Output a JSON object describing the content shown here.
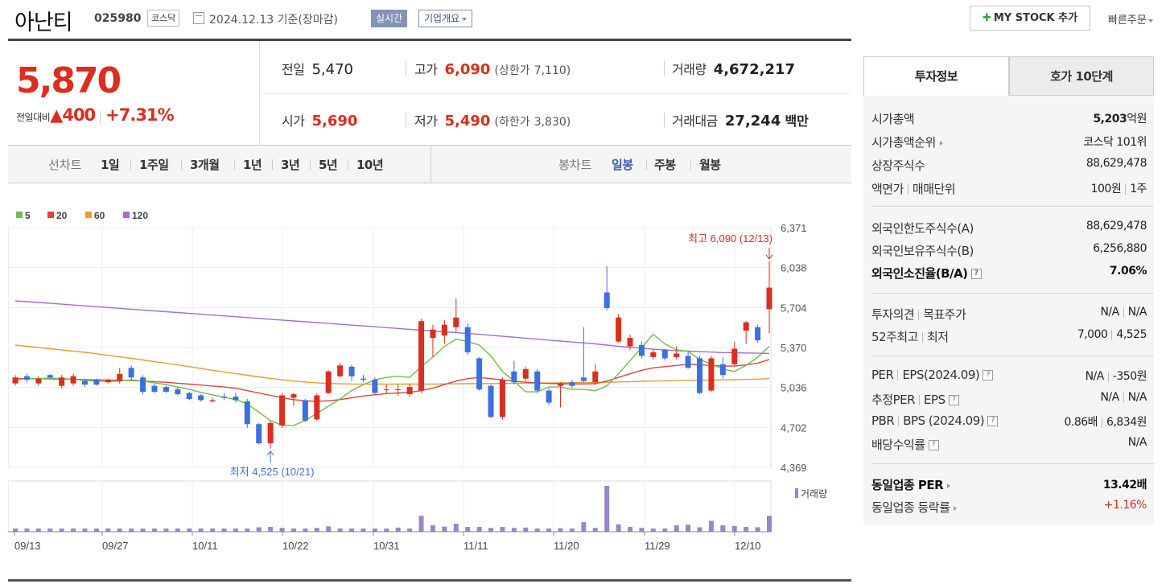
{
  "header": {
    "name": "아난티",
    "code": "025980",
    "market": "코스닥",
    "date": "2024.12.13  기준(장마감)",
    "live": "실시간",
    "overview": "기업개요",
    "mystock": "MY STOCK 추가",
    "quick_order": "빠른주문"
  },
  "price": {
    "current": "5,870",
    "change_label": "전일대비",
    "change": "400",
    "change_pct": "+7.31%"
  },
  "summary": {
    "prev_label": "전일",
    "prev": "5,470",
    "high_label": "고가",
    "high": "6,090",
    "upper_label": "(상한가",
    "upper": "7,110",
    "upper_end": ")",
    "volume_label": "거래량",
    "volume": "4,672,217",
    "open_label": "시가",
    "open": "5,690",
    "low_label": "저가",
    "low": "5,490",
    "lower_label": "(하한가",
    "lower": "3,830",
    "lower_end": ")",
    "value_label": "거래대금",
    "value": "27,244",
    "value_unit": "백만"
  },
  "period": {
    "line_label": "선차트",
    "line_items": [
      "1일",
      "1주일",
      "3개월",
      "1년",
      "3년",
      "5년",
      "10년"
    ],
    "candle_label": "봉차트",
    "candle_items": [
      "일봉",
      "주봉",
      "월봉"
    ],
    "selected": "일봉"
  },
  "colors": {
    "up": "#dc2d1e",
    "down": "#3c6fe0",
    "ma5": "#6cc04a",
    "ma20": "#e0443a",
    "ma60": "#ee9a32",
    "ma120": "#a56bdb",
    "volume": "#9a85c9"
  },
  "chart_data": {
    "type": "candlestick",
    "legend": [
      "5",
      "20",
      "60",
      "120"
    ],
    "y_ticks": [
      "6,371",
      "6,038",
      "5,704",
      "5,370",
      "5,036",
      "4,702",
      "4,369"
    ],
    "ylim": [
      4369,
      6371
    ],
    "x_ticks": [
      "09/13",
      "09/27",
      "10/11",
      "10/22",
      "10/31",
      "11/11",
      "11/20",
      "11/29",
      "12/10"
    ],
    "max_label": "최고 6,090 (12/13)",
    "min_label": "최저 4,525 (10/21)",
    "volume_label": "거래량",
    "candles": [
      {
        "o": 5070,
        "c": 5120,
        "h": 5140,
        "l": 5050
      },
      {
        "o": 5130,
        "c": 5100,
        "h": 5150,
        "l": 5080
      },
      {
        "o": 5070,
        "c": 5110,
        "h": 5130,
        "l": 5050
      },
      {
        "o": 5140,
        "c": 5120,
        "h": 5150,
        "l": 5110
      },
      {
        "o": 5050,
        "c": 5120,
        "h": 5140,
        "l": 5030
      },
      {
        "o": 5070,
        "c": 5130,
        "h": 5150,
        "l": 5050
      },
      {
        "o": 5090,
        "c": 5060,
        "h": 5110,
        "l": 5040
      },
      {
        "o": 5100,
        "c": 5060,
        "h": 5110,
        "l": 5050
      },
      {
        "o": 5080,
        "c": 5100,
        "h": 5110,
        "l": 5070
      },
      {
        "o": 5090,
        "c": 5150,
        "h": 5200,
        "l": 5070
      },
      {
        "o": 5200,
        "c": 5120,
        "h": 5220,
        "l": 5100
      },
      {
        "o": 5120,
        "c": 5000,
        "h": 5140,
        "l": 4980
      },
      {
        "o": 5050,
        "c": 5000,
        "h": 5070,
        "l": 4990
      },
      {
        "o": 5040,
        "c": 5000,
        "h": 5050,
        "l": 4990
      },
      {
        "o": 5020,
        "c": 4980,
        "h": 5040,
        "l": 4970
      },
      {
        "o": 4990,
        "c": 4940,
        "h": 5000,
        "l": 4930
      },
      {
        "o": 4970,
        "c": 4930,
        "h": 4980,
        "l": 4920
      },
      {
        "o": 4920,
        "c": 4930,
        "h": 4950,
        "l": 4910
      },
      {
        "o": 4960,
        "c": 4950,
        "h": 4990,
        "l": 4930
      },
      {
        "o": 4960,
        "c": 4930,
        "h": 4990,
        "l": 4910
      },
      {
        "o": 4920,
        "c": 4730,
        "h": 4940,
        "l": 4700
      },
      {
        "o": 4730,
        "c": 4570,
        "h": 4740,
        "l": 4560
      },
      {
        "o": 4570,
        "c": 4740,
        "h": 4760,
        "l": 4525
      },
      {
        "o": 4720,
        "c": 4970,
        "h": 4990,
        "l": 4700
      },
      {
        "o": 4950,
        "c": 4980,
        "h": 4990,
        "l": 4880
      },
      {
        "o": 4930,
        "c": 4760,
        "h": 4940,
        "l": 4750
      },
      {
        "o": 4770,
        "c": 4970,
        "h": 4990,
        "l": 4760
      },
      {
        "o": 4990,
        "c": 5170,
        "h": 5180,
        "l": 4980
      },
      {
        "o": 5130,
        "c": 5220,
        "h": 5240,
        "l": 5120
      },
      {
        "o": 5210,
        "c": 5130,
        "h": 5230,
        "l": 5090
      },
      {
        "o": 5110,
        "c": 5100,
        "h": 5140,
        "l": 5080
      },
      {
        "o": 5100,
        "c": 4990,
        "h": 5120,
        "l": 4980
      },
      {
        "o": 5020,
        "c": 5020,
        "h": 5060,
        "l": 4980
      },
      {
        "o": 5020,
        "c": 5020,
        "h": 5060,
        "l": 4970
      },
      {
        "o": 4980,
        "c": 5040,
        "h": 5070,
        "l": 4960
      },
      {
        "o": 5010,
        "c": 5590,
        "h": 5610,
        "l": 4990
      },
      {
        "o": 5450,
        "c": 5520,
        "h": 5560,
        "l": 5290
      },
      {
        "o": 5470,
        "c": 5560,
        "h": 5600,
        "l": 5400
      },
      {
        "o": 5540,
        "c": 5620,
        "h": 5780,
        "l": 5500
      },
      {
        "o": 5540,
        "c": 5330,
        "h": 5570,
        "l": 5310
      },
      {
        "o": 5280,
        "c": 5020,
        "h": 5290,
        "l": 5010
      },
      {
        "o": 5050,
        "c": 4790,
        "h": 5060,
        "l": 4780
      },
      {
        "o": 4790,
        "c": 5100,
        "h": 5120,
        "l": 4770
      },
      {
        "o": 5170,
        "c": 5080,
        "h": 5260,
        "l": 5060
      },
      {
        "o": 5110,
        "c": 5190,
        "h": 5210,
        "l": 5090
      },
      {
        "o": 5170,
        "c": 5010,
        "h": 5190,
        "l": 4990
      },
      {
        "o": 5010,
        "c": 4910,
        "h": 5030,
        "l": 4890
      },
      {
        "o": 5050,
        "c": 5070,
        "h": 5080,
        "l": 4870
      },
      {
        "o": 5080,
        "c": 5050,
        "h": 5100,
        "l": 5030
      },
      {
        "o": 5120,
        "c": 5090,
        "h": 5540,
        "l": 5080
      },
      {
        "o": 5080,
        "c": 5170,
        "h": 5230,
        "l": 5060
      },
      {
        "o": 5830,
        "c": 5700,
        "h": 6050,
        "l": 5680
      },
      {
        "o": 5420,
        "c": 5620,
        "h": 5650,
        "l": 5410
      },
      {
        "o": 5380,
        "c": 5450,
        "h": 5480,
        "l": 5350
      },
      {
        "o": 5390,
        "c": 5300,
        "h": 5420,
        "l": 5280
      },
      {
        "o": 5290,
        "c": 5330,
        "h": 5350,
        "l": 5270
      },
      {
        "o": 5350,
        "c": 5280,
        "h": 5360,
        "l": 5260
      },
      {
        "o": 5290,
        "c": 5320,
        "h": 5380,
        "l": 5270
      },
      {
        "o": 5300,
        "c": 5200,
        "h": 5340,
        "l": 5190
      },
      {
        "o": 5280,
        "c": 4990,
        "h": 5300,
        "l": 4980
      },
      {
        "o": 5010,
        "c": 5280,
        "h": 5300,
        "l": 5000
      },
      {
        "o": 5230,
        "c": 5140,
        "h": 5290,
        "l": 5110
      },
      {
        "o": 5230,
        "c": 5360,
        "h": 5420,
        "l": 5220
      },
      {
        "o": 5510,
        "c": 5580,
        "h": 5590,
        "l": 5400
      },
      {
        "o": 5540,
        "c": 5430,
        "h": 5560,
        "l": 5410
      },
      {
        "o": 5690,
        "c": 5870,
        "h": 6090,
        "l": 5490
      }
    ],
    "volumes": [
      1,
      1,
      1,
      1,
      1,
      1,
      1,
      1,
      1,
      1,
      1,
      1,
      1,
      1,
      1,
      1,
      1,
      1,
      1,
      1,
      1,
      1.4,
      1.5,
      1.2,
      1,
      1,
      1.2,
      1.7,
      1,
      1,
      1,
      1,
      1,
      1.3,
      1,
      5,
      2,
      1.6,
      2.5,
      1.5,
      1.5,
      1.2,
      1.5,
      1.2,
      1.3,
      1,
      1,
      1.1,
      1,
      3,
      1.2,
      14.4,
      2.3,
      1.5,
      1.2,
      1,
      1,
      2,
      2.2,
      1.4,
      3.4,
      2,
      1.8,
      1.5,
      1.4,
      5
    ],
    "ma5": [
      5100,
      5110,
      5110,
      5115,
      5110,
      5105,
      5095,
      5090,
      5085,
      5090,
      5100,
      5090,
      5075,
      5060,
      5040,
      5020,
      4995,
      4975,
      4955,
      4935,
      4900,
      4830,
      4760,
      4720,
      4720,
      4760,
      4820,
      4880,
      4940,
      5010,
      5060,
      5100,
      5120,
      5130,
      5120,
      5210,
      5290,
      5380,
      5440,
      5420,
      5390,
      5300,
      5170,
      5090,
      5000,
      5000,
      5040,
      5040,
      5020,
      5020,
      5010,
      5050,
      5150,
      5260,
      5370,
      5480,
      5400,
      5350,
      5340,
      5270,
      5230,
      5190,
      5170,
      5220,
      5290,
      5380
    ],
    "ma20": [
      5110,
      5110,
      5110,
      5108,
      5106,
      5104,
      5102,
      5100,
      5098,
      5096,
      5094,
      5090,
      5085,
      5080,
      5072,
      5064,
      5056,
      5048,
      5040,
      5030,
      5010,
      4990,
      4970,
      4950,
      4935,
      4925,
      4920,
      4925,
      4935,
      4950,
      4965,
      4975,
      4985,
      4990,
      4995,
      5010,
      5030,
      5060,
      5090,
      5110,
      5120,
      5110,
      5100,
      5090,
      5080,
      5075,
      5070,
      5068,
      5066,
      5066,
      5068,
      5090,
      5120,
      5150,
      5180,
      5200,
      5210,
      5220,
      5230,
      5225,
      5220,
      5215,
      5215,
      5225,
      5240,
      5270
    ],
    "ma60": [
      5390,
      5380,
      5370,
      5360,
      5350,
      5340,
      5330,
      5318,
      5305,
      5292,
      5280,
      5266,
      5252,
      5238,
      5224,
      5210,
      5195,
      5180,
      5166,
      5152,
      5138,
      5125,
      5112,
      5100,
      5090,
      5082,
      5075,
      5070,
      5067,
      5065,
      5064,
      5064,
      5064,
      5064,
      5064,
      5064,
      5065,
      5066,
      5067,
      5068,
      5069,
      5069,
      5070,
      5071,
      5072,
      5073,
      5074,
      5075,
      5076,
      5077,
      5078,
      5080,
      5082,
      5085,
      5088,
      5090,
      5092,
      5094,
      5096,
      5097,
      5098,
      5100,
      5101,
      5103,
      5106,
      5110
    ],
    "ma120": [
      5760,
      5753,
      5746,
      5739,
      5732,
      5725,
      5718,
      5711,
      5704,
      5697,
      5690,
      5683,
      5676,
      5669,
      5662,
      5655,
      5648,
      5641,
      5634,
      5627,
      5620,
      5613,
      5606,
      5599,
      5592,
      5585,
      5578,
      5571,
      5564,
      5557,
      5550,
      5543,
      5536,
      5529,
      5522,
      5515,
      5508,
      5501,
      5494,
      5487,
      5480,
      5472,
      5464,
      5456,
      5448,
      5440,
      5432,
      5424,
      5416,
      5408,
      5400,
      5390,
      5380,
      5372,
      5364,
      5356,
      5350,
      5344,
      5340,
      5336,
      5332,
      5328,
      5326,
      5324,
      5322,
      5320
    ]
  },
  "panel": {
    "tab_info": "투자정보",
    "tab_quote": "호가 10단계",
    "cap_label": "시가총액",
    "cap": "5,203",
    "cap_unit": "억원",
    "rank_label": "시가총액순위",
    "rank": "코스닥 101위",
    "shares_label": "상장주식수",
    "shares": "88,629,478",
    "face_label": "액면가",
    "unit_label": "매매단위",
    "face": "100원",
    "unit": "1주",
    "fl_label": "외국인한도주식수(A)",
    "fl": "88,629,478",
    "fh_label": "외국인보유주식수(B)",
    "fh": "6,256,880",
    "fr_label": "외국인소진율(B/A)",
    "fr": "7.06%",
    "op_label": "투자의견",
    "tg_label": "목표주가",
    "op": "N/A",
    "tg": "N/A",
    "w52_label": "52주최고",
    "w52l_label": "최저",
    "w52h": "7,000",
    "w52l": "4,525",
    "per_label": "PER",
    "eps_label": "EPS(2024.09)",
    "per": "N/A",
    "eps": "-350원",
    "eper_label": "추정PER",
    "eeps_label": "EPS",
    "eper": "N/A",
    "eeps": "N/A",
    "pbr_label": "PBR",
    "bps_label": "BPS (2024.09)",
    "pbr": "0.86배",
    "bps": "6,834원",
    "div_label": "배당수익률",
    "div": "N/A",
    "iper_label": "동일업종 PER",
    "iper": "13.42배",
    "irate_label": "동일업종 등락률",
    "irate": "+1.16%"
  }
}
